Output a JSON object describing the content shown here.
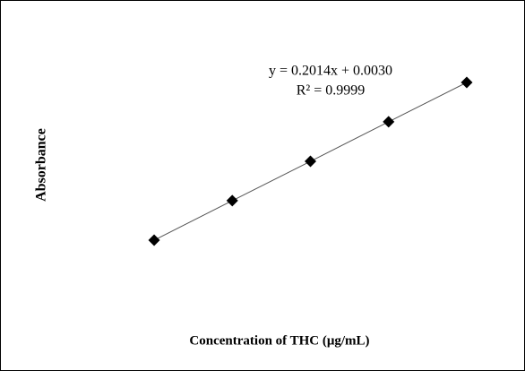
{
  "chart_data": {
    "type": "scatter",
    "x_label": "Concentration of  THC (μg/mL)",
    "y_label": "Absorbance",
    "annotations": [
      "y = 0.2014x + 0.0030",
      "R² = 0.9999"
    ],
    "series": [
      {
        "color": "#000000",
        "x": [
          1,
          2,
          3,
          4,
          5
        ],
        "values": [
          0.204,
          0.406,
          0.607,
          0.809,
          1.01
        ]
      }
    ],
    "xlim": [
      0.5,
      5.5
    ],
    "ylim": [
      0,
      1.2
    ]
  }
}
